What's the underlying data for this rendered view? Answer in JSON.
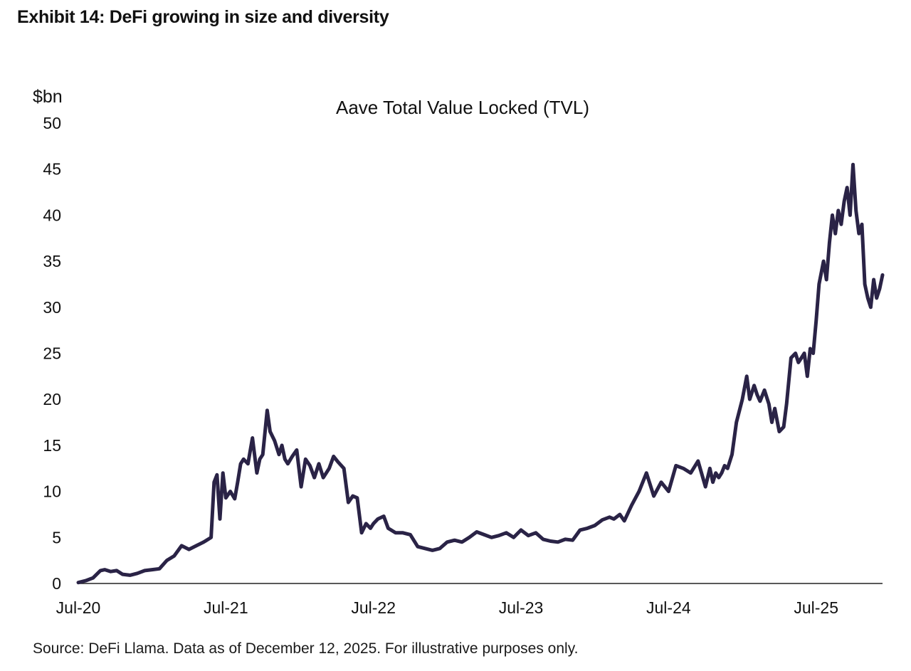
{
  "exhibit_title": "Exhibit 14: DeFi growing in size and diversity",
  "source_note": "Source: DeFi Llama. Data as of December 12, 2025. For illustrative purposes only.",
  "colors": {
    "line": "#2a2346",
    "text": "#111111",
    "axis": "#222222"
  },
  "chart_data": {
    "type": "line",
    "title": "Aave Total Value Locked (TVL)",
    "ylabel": "$bn",
    "xlabel": "",
    "ylim": [
      0,
      50
    ],
    "yticks": [
      0,
      5,
      10,
      15,
      20,
      25,
      30,
      35,
      40,
      45,
      50
    ],
    "x_range": [
      2020.5,
      2025.95
    ],
    "xticks": [
      {
        "label": "Jul-20",
        "x": 2020.5
      },
      {
        "label": "Jul-21",
        "x": 2021.5
      },
      {
        "label": "Jul-22",
        "x": 2022.5
      },
      {
        "label": "Jul-23",
        "x": 2023.5
      },
      {
        "label": "Jul-24",
        "x": 2024.5
      },
      {
        "label": "Jul-25",
        "x": 2025.5
      }
    ],
    "grid": false,
    "series": [
      {
        "name": "Aave TVL",
        "x": [
          2020.5,
          2020.55,
          2020.6,
          2020.65,
          2020.68,
          2020.72,
          2020.76,
          2020.8,
          2020.85,
          2020.9,
          2020.95,
          2021.0,
          2021.05,
          2021.1,
          2021.15,
          2021.2,
          2021.25,
          2021.3,
          2021.35,
          2021.38,
          2021.4,
          2021.42,
          2021.44,
          2021.46,
          2021.48,
          2021.5,
          2021.53,
          2021.56,
          2021.58,
          2021.6,
          2021.62,
          2021.65,
          2021.68,
          2021.71,
          2021.73,
          2021.75,
          2021.78,
          2021.8,
          2021.83,
          2021.86,
          2021.88,
          2021.9,
          2021.92,
          2021.95,
          2021.98,
          2022.01,
          2022.04,
          2022.07,
          2022.1,
          2022.13,
          2022.16,
          2022.2,
          2022.23,
          2022.26,
          2022.3,
          2022.33,
          2022.36,
          2022.39,
          2022.42,
          2022.45,
          2022.48,
          2022.5,
          2022.53,
          2022.57,
          2022.6,
          2022.65,
          2022.7,
          2022.75,
          2022.8,
          2022.85,
          2022.9,
          2022.95,
          2023.0,
          2023.05,
          2023.1,
          2023.15,
          2023.2,
          2023.25,
          2023.3,
          2023.35,
          2023.4,
          2023.45,
          2023.5,
          2023.55,
          2023.6,
          2023.65,
          2023.7,
          2023.75,
          2023.8,
          2023.85,
          2023.9,
          2023.95,
          2024.0,
          2024.05,
          2024.1,
          2024.13,
          2024.17,
          2024.2,
          2024.25,
          2024.3,
          2024.35,
          2024.4,
          2024.45,
          2024.5,
          2024.55,
          2024.6,
          2024.65,
          2024.7,
          2024.75,
          2024.78,
          2024.8,
          2024.82,
          2024.84,
          2024.86,
          2024.88,
          2024.9,
          2024.93,
          2024.96,
          2025.0,
          2025.03,
          2025.05,
          2025.08,
          2025.1,
          2025.12,
          2025.15,
          2025.18,
          2025.2,
          2025.22,
          2025.25,
          2025.28,
          2025.3,
          2025.33,
          2025.36,
          2025.38,
          2025.4,
          2025.42,
          2025.44,
          2025.46,
          2025.48,
          2025.5,
          2025.52,
          2025.55,
          2025.57,
          2025.59,
          2025.61,
          2025.63,
          2025.65,
          2025.67,
          2025.69,
          2025.71,
          2025.73,
          2025.75,
          2025.77,
          2025.79,
          2025.81,
          2025.83,
          2025.85,
          2025.87,
          2025.89,
          2025.91,
          2025.93,
          2025.95
        ],
        "values": [
          0.1,
          0.3,
          0.6,
          1.4,
          1.5,
          1.3,
          1.4,
          1.0,
          0.9,
          1.1,
          1.4,
          1.5,
          1.6,
          2.5,
          3.0,
          4.1,
          3.7,
          4.1,
          4.5,
          4.8,
          5.0,
          11.0,
          11.8,
          7.0,
          12.0,
          9.3,
          10.0,
          9.2,
          11.0,
          13.0,
          13.5,
          13.0,
          15.8,
          12.0,
          13.5,
          14.0,
          18.8,
          16.5,
          15.5,
          14.0,
          15.0,
          13.5,
          13.0,
          13.8,
          14.5,
          10.5,
          13.5,
          12.8,
          11.5,
          13.0,
          11.5,
          12.5,
          13.8,
          13.2,
          12.5,
          8.8,
          9.5,
          9.3,
          5.5,
          6.5,
          6.0,
          6.5,
          7.0,
          7.3,
          6.0,
          5.5,
          5.5,
          5.3,
          4.0,
          3.8,
          3.6,
          3.8,
          4.5,
          4.7,
          4.5,
          5.0,
          5.6,
          5.3,
          5.0,
          5.2,
          5.5,
          5.0,
          5.8,
          5.2,
          5.5,
          4.8,
          4.6,
          4.5,
          4.8,
          4.7,
          5.8,
          6.0,
          6.3,
          6.9,
          7.2,
          7.0,
          7.5,
          6.8,
          8.5,
          10.0,
          12.0,
          9.5,
          11.0,
          10.0,
          12.8,
          12.5,
          12.0,
          13.3,
          10.5,
          12.5,
          11.0,
          12.0,
          11.5,
          12.0,
          12.8,
          12.5,
          14.0,
          17.5,
          20.0,
          22.5,
          20.0,
          21.5,
          20.5,
          19.8,
          21.0,
          19.5,
          17.5,
          19.0,
          16.5,
          17.0,
          19.5,
          24.5,
          25.0,
          24.0,
          24.5,
          25.0,
          22.5,
          25.5,
          25.0,
          28.5,
          32.5,
          35.0,
          33.0,
          37.0,
          40.0,
          38.0,
          40.5,
          39.0,
          41.5,
          43.0,
          40.0,
          45.5,
          40.5,
          38.0,
          39.0,
          32.5,
          31.0,
          30.0,
          33.0,
          31.0,
          32.0,
          33.5
        ]
      }
    ]
  }
}
